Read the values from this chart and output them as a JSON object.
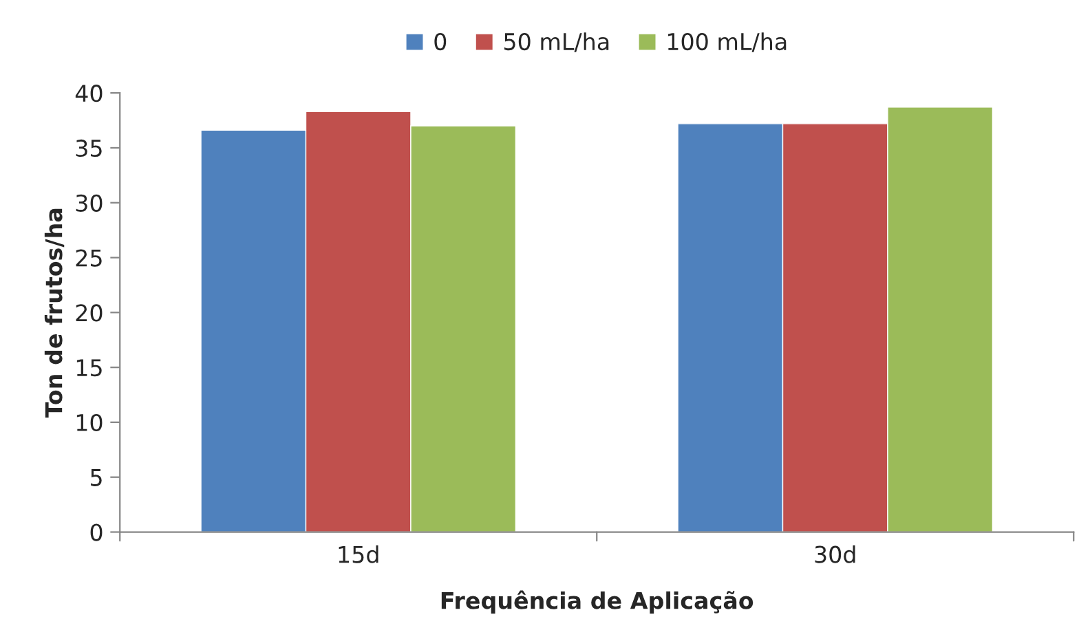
{
  "chart_data": {
    "type": "bar",
    "xlabel": "Frequência de Aplicação",
    "ylabel": "Ton de frutos/ha",
    "categories": [
      "15d",
      "30d"
    ],
    "series": [
      {
        "name": "0",
        "color": "#4f81bd",
        "values": [
          36.6,
          37.2
        ]
      },
      {
        "name": "50 mL/ha",
        "color": "#c0504d",
        "values": [
          38.3,
          37.2
        ]
      },
      {
        "name": "100 mL/ha",
        "color": "#9bbb59",
        "values": [
          37.0,
          38.7
        ]
      }
    ],
    "ylim": [
      0,
      40
    ],
    "yticks": [
      0,
      5,
      10,
      15,
      20,
      25,
      30,
      35,
      40
    ],
    "grid": false,
    "legend": "top"
  }
}
